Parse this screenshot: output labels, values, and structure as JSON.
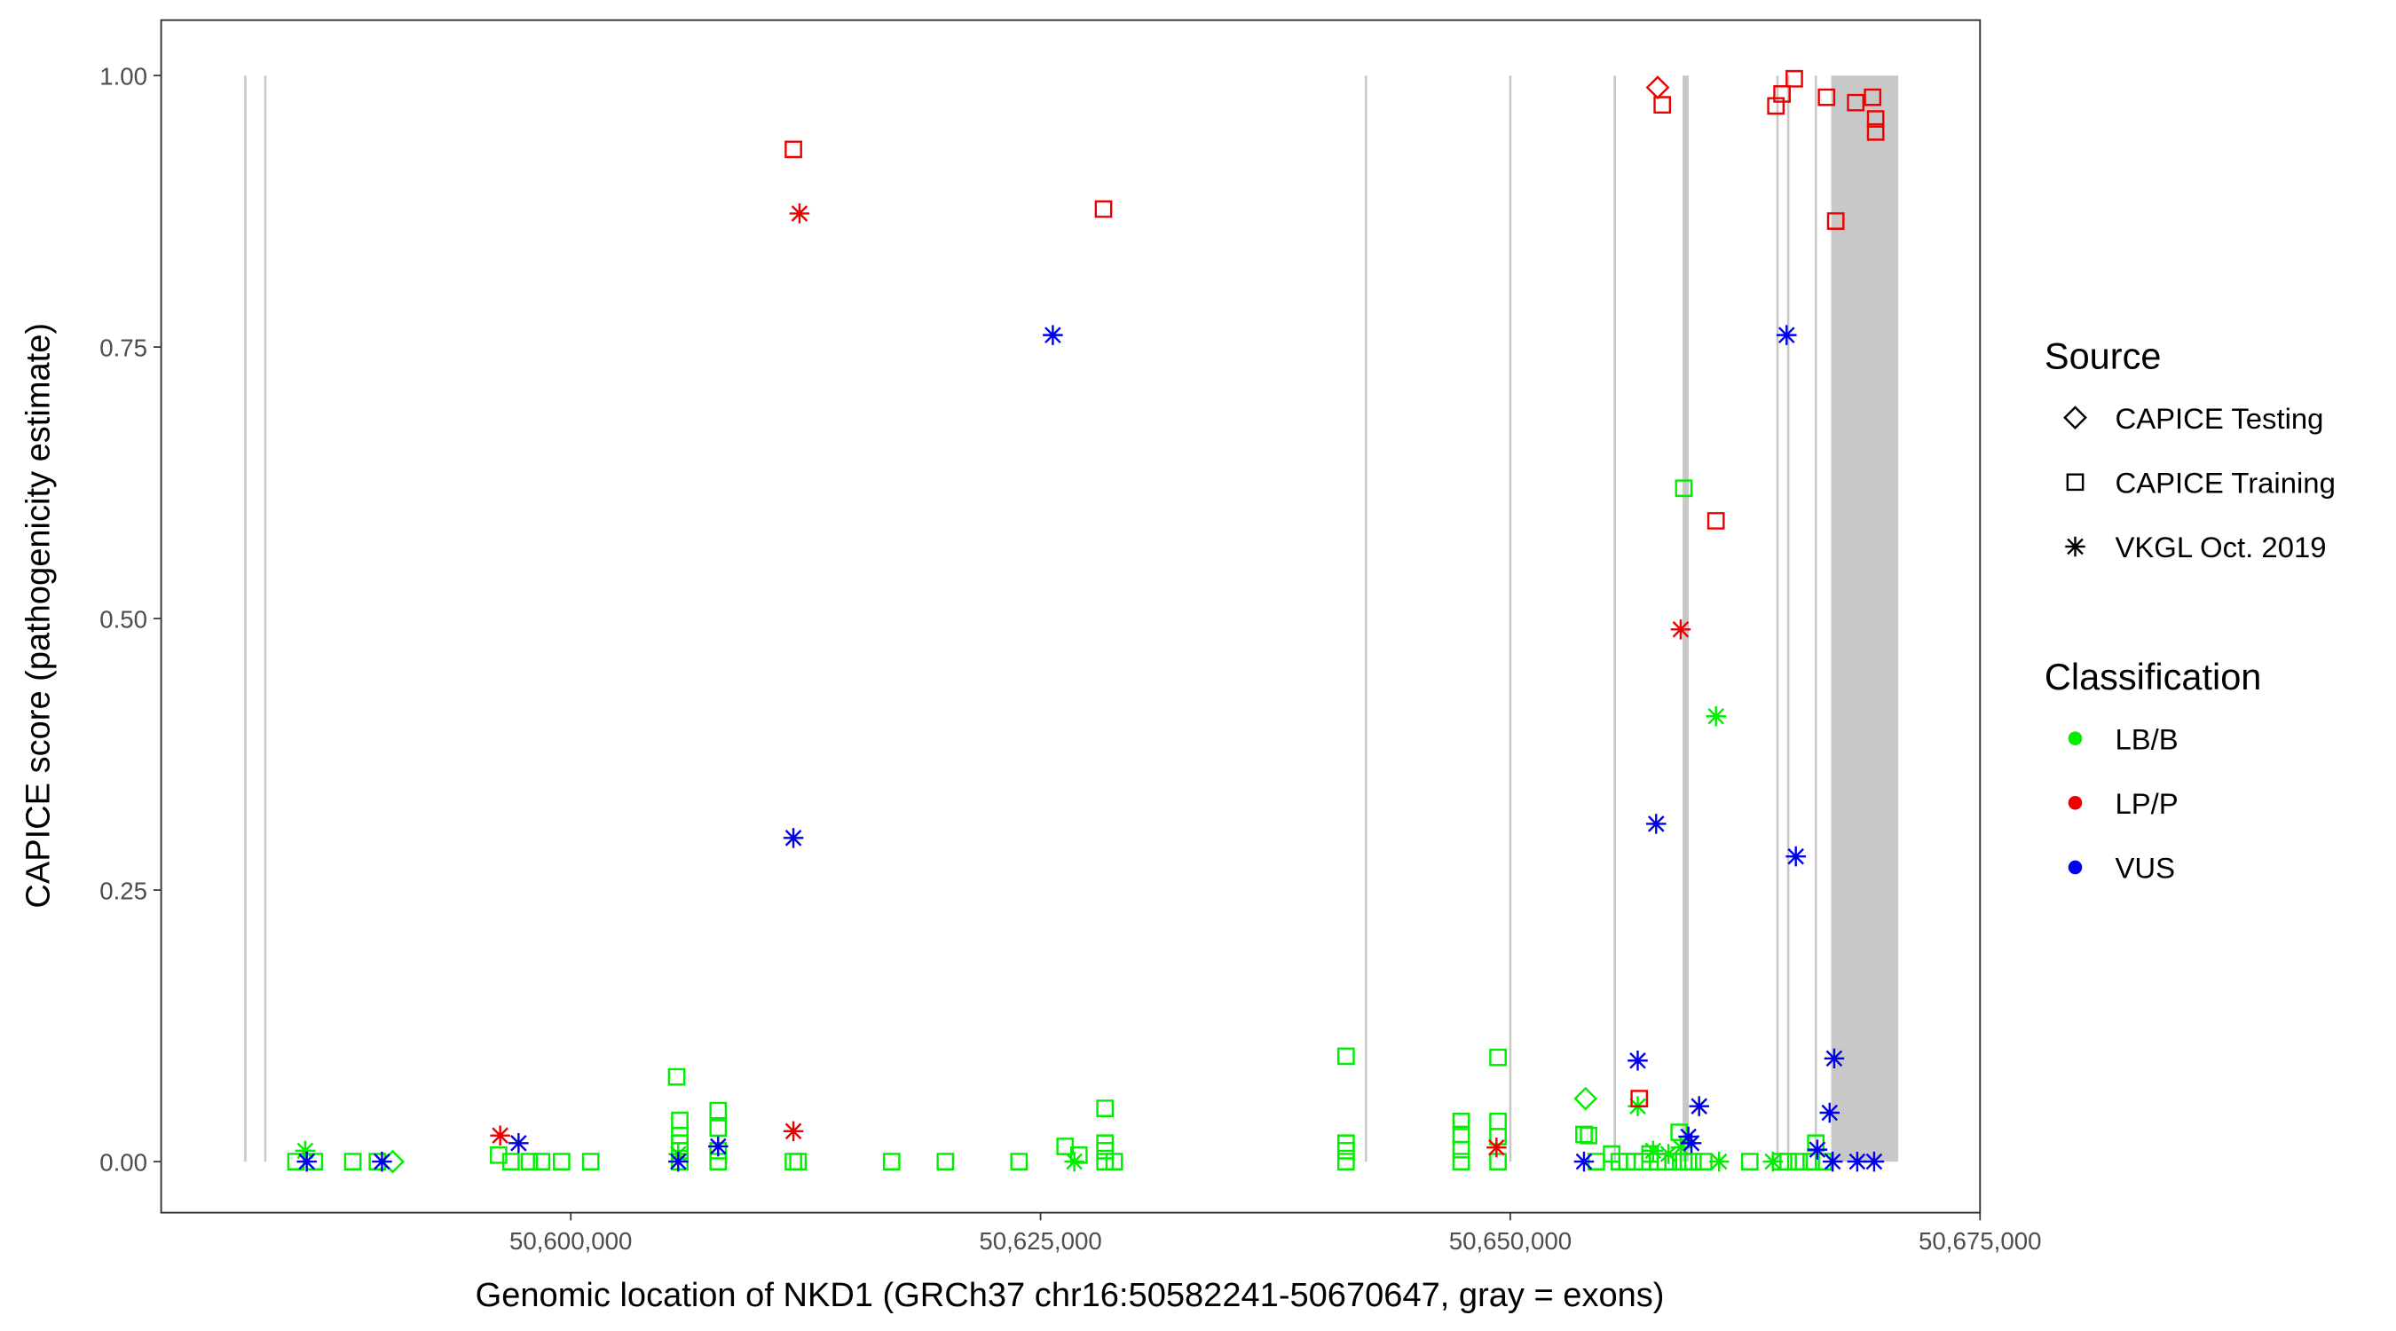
{
  "chart_data": {
    "type": "scatter",
    "x_label": "Genomic location of NKD1 (GRCh37 chr16:50582241-50670647, gray = exons)",
    "y_label": "CAPICE score (pathogenicity estimate)",
    "xlim": [
      50578200,
      50675000
    ],
    "ylim": [
      -0.047,
      1.051
    ],
    "xticks": [
      {
        "value": 50600000,
        "label": "50,600,000"
      },
      {
        "value": 50625000,
        "label": "50,625,000"
      },
      {
        "value": 50650000,
        "label": "50,650,000"
      },
      {
        "value": 50675000,
        "label": "50,675,000"
      }
    ],
    "yticks": [
      {
        "value": 0,
        "label": "0.00"
      },
      {
        "value": 0.25,
        "label": "0.25"
      },
      {
        "value": 0.5,
        "label": "0.50"
      },
      {
        "value": 0.75,
        "label": "0.75"
      },
      {
        "value": 1,
        "label": "1.00"
      }
    ],
    "exons": [
      [
        50582620,
        50582740
      ],
      [
        50583680,
        50583800
      ],
      [
        50642260,
        50642380
      ],
      [
        50649940,
        50650060
      ],
      [
        50655500,
        50655620
      ],
      [
        50659170,
        50659500
      ],
      [
        50664160,
        50664280
      ],
      [
        50664730,
        50664850
      ],
      [
        50666200,
        50666320
      ],
      [
        50667080,
        50670647
      ]
    ],
    "exon_color": "#c8c8c8",
    "source_title": "Source",
    "classification_title": "Classification",
    "sources": [
      {
        "name": "CAPICE Testing",
        "shape": "diamond"
      },
      {
        "name": "CAPICE Training",
        "shape": "square"
      },
      {
        "name": "VKGL Oct. 2019",
        "shape": "asterisk"
      }
    ],
    "classifications": [
      {
        "name": "LB/B",
        "color": "#00ee00"
      },
      {
        "name": "LP/P",
        "color": "#ee0000"
      },
      {
        "name": "VUS",
        "color": "#0000ee"
      }
    ],
    "series": [
      {
        "source": 1,
        "classification": 0,
        "x": [
          50585376,
          50586356,
          50588399,
          50589706,
          50596160,
          50596814,
          50597794,
          50598448,
          50599510,
          50601062,
          50605637,
          50605801,
          50605801,
          50605801,
          50605801,
          50605801,
          50607843,
          50607843,
          50607843,
          50607843,
          50611847,
          50612092,
          50617075,
          50619935,
          50623856,
          50626307,
          50627043,
          50628432,
          50628432,
          50628432,
          50628432,
          50628922,
          50641259,
          50641259,
          50641259,
          50641259,
          50647386,
          50647386,
          50647386,
          50647386,
          50649347,
          50649347,
          50649347,
          50649347,
          50653922,
          50654167,
          50654576,
          50655393,
          50655801,
          50656210,
          50656618,
          50657027,
          50657435,
          50657844,
          50658252,
          50658661,
          50658987,
          50659233,
          50659233,
          50659723,
          50660295,
          50662746,
          50664380,
          50664788,
          50665360,
          50666014,
          50666259,
          50666667
        ],
        "values": [
          0,
          0,
          0,
          0,
          0.006,
          0,
          0,
          0,
          0,
          0,
          0.078,
          0.038,
          0.024,
          0.017,
          0.01,
          0,
          0.047,
          0.031,
          0.01,
          0,
          0,
          0,
          0,
          0,
          0,
          0.014,
          0.006,
          0.049,
          0.017,
          0.01,
          0,
          0,
          0.097,
          0.017,
          0.01,
          0,
          0.037,
          0.025,
          0.011,
          0,
          0.096,
          0.037,
          0.023,
          0,
          0.025,
          0.024,
          0,
          0.007,
          0,
          0,
          0,
          0,
          0.007,
          0,
          0,
          0,
          0.027,
          0.62,
          0,
          0,
          0,
          0,
          0,
          0,
          0,
          0,
          0.017,
          0
        ]
      },
      {
        "source": 0,
        "classification": 0,
        "x": [
          50590523,
          50654004
        ],
        "values": [
          0,
          0.058
        ]
      },
      {
        "source": 2,
        "classification": 0,
        "x": [
          50585866,
          50605719,
          50626798,
          50656782,
          50657599,
          50658416,
          50659069,
          50660948,
          50661112,
          50663971
        ],
        "values": [
          0.01,
          0.007,
          0,
          0.051,
          0.01,
          0.007,
          0.013,
          0.41,
          0,
          0
        ]
      },
      {
        "source": 1,
        "classification": 1,
        "x": [
          50611847,
          50628350,
          50658089,
          50656863,
          50660948,
          50664135,
          50664461,
          50665115,
          50666831,
          50667321,
          50668383,
          50669282,
          50669445,
          50669445
        ],
        "values": [
          0.932,
          0.877,
          0.973,
          0.058,
          0.59,
          0.972,
          0.983,
          0.997,
          0.98,
          0.866,
          0.975,
          0.98,
          0.96,
          0.948
        ]
      },
      {
        "source": 0,
        "classification": 1,
        "x": [
          50657844
        ],
        "values": [
          0.989
        ]
      },
      {
        "source": 2,
        "classification": 1,
        "x": [
          50612173,
          50596242,
          50611847,
          50649265,
          50659069
        ],
        "values": [
          0.873,
          0.024,
          0.028,
          0.013,
          0.49
        ]
      },
      {
        "source": 2,
        "classification": 2,
        "x": [
          50585948,
          50589951,
          50597222,
          50605719,
          50607843,
          50611847,
          50625654,
          50653922,
          50656782,
          50657762,
          50659478,
          50659641,
          50660050,
          50664706,
          50665197,
          50666340,
          50667239,
          50666994,
          50667157,
          50668465,
          50669363
        ],
        "values": [
          0,
          0,
          0.017,
          0,
          0.014,
          0.298,
          0.761,
          0,
          0.093,
          0.311,
          0.023,
          0.017,
          0.051,
          0.761,
          0.281,
          0.011,
          0.095,
          0.045,
          0,
          0,
          0
        ]
      }
    ]
  }
}
